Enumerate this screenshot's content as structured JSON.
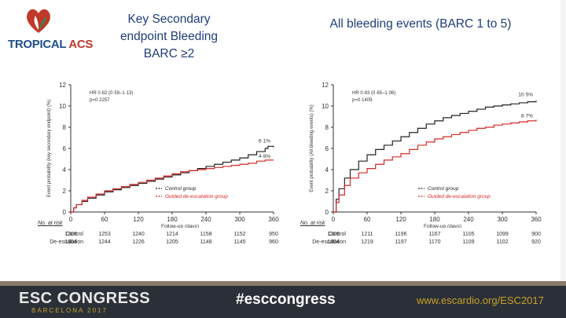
{
  "logo": {
    "name_part1": "TROPICAL",
    "name_part2": " ACS"
  },
  "slide_titles": {
    "left": [
      "Key Secondary",
      "endpoint  Bleeding",
      "BARC ≥2"
    ],
    "right": "All bleeding events (BARC 1 to 5)"
  },
  "chart_data": [
    {
      "type": "line",
      "title": "",
      "xlabel": "Follow-up (days)",
      "ylabel": "Event probability (key secondary endpoint) (%)",
      "xlim": [
        0,
        360
      ],
      "ylim": [
        0,
        12
      ],
      "x_ticks": [
        0,
        60,
        120,
        180,
        240,
        300,
        360
      ],
      "y_ticks": [
        0,
        2,
        4,
        6,
        8,
        10,
        12
      ],
      "annotation": [
        "HR 0·82 (0·59–1·13)",
        "p=0·2257"
      ],
      "legend": [
        "Control group",
        "Guided de-escalation group"
      ],
      "legend_placement": "bottom-right",
      "series": [
        {
          "name": "Control group",
          "color": "#222222",
          "end_label": "6·1%",
          "x": [
            0,
            5,
            10,
            20,
            30,
            45,
            60,
            75,
            90,
            105,
            120,
            135,
            150,
            165,
            180,
            195,
            210,
            225,
            240,
            255,
            270,
            285,
            300,
            315,
            330,
            345,
            350,
            360
          ],
          "y": [
            0,
            0.4,
            0.7,
            1.0,
            1.3,
            1.6,
            1.9,
            2.1,
            2.3,
            2.5,
            2.7,
            2.9,
            3.1,
            3.3,
            3.5,
            3.7,
            3.9,
            4.1,
            4.3,
            4.5,
            4.7,
            4.9,
            5.1,
            5.4,
            5.7,
            6.0,
            6.2,
            6.1
          ]
        },
        {
          "name": "Guided de-escalation group",
          "color": "#d62828",
          "end_label": "4·9%",
          "x": [
            0,
            5,
            10,
            20,
            30,
            45,
            60,
            75,
            90,
            105,
            120,
            135,
            150,
            165,
            180,
            195,
            210,
            225,
            240,
            255,
            270,
            285,
            300,
            315,
            330,
            345,
            360
          ],
          "y": [
            0,
            0.4,
            0.7,
            1.1,
            1.4,
            1.7,
            2.0,
            2.2,
            2.4,
            2.6,
            2.8,
            3.0,
            3.2,
            3.4,
            3.6,
            3.8,
            3.9,
            4.0,
            4.1,
            4.2,
            4.3,
            4.4,
            4.5,
            4.6,
            4.8,
            4.9,
            4.9
          ]
        }
      ],
      "at_risk": {
        "header": "No. at risk",
        "rows": [
          {
            "label": "Control",
            "values": [
              "1306",
              "1253",
              "1240",
              "1214",
              "1158",
              "1152",
              "950"
            ]
          },
          {
            "label": "De-escalation",
            "values": [
              "1304",
              "1244",
              "1226",
              "1205",
              "1148",
              "1145",
              "960"
            ]
          }
        ]
      }
    },
    {
      "type": "line",
      "title": "",
      "xlabel": "Follow-up (days)",
      "ylabel": "Event probability (All bleeding events) (%)",
      "xlim": [
        0,
        360
      ],
      "ylim": [
        0,
        12
      ],
      "x_ticks": [
        0,
        60,
        120,
        180,
        240,
        300,
        360
      ],
      "y_ticks": [
        0,
        2,
        4,
        6,
        8,
        10,
        12
      ],
      "annotation": [
        "HR 0·83 (0·65–1·06)",
        "p=0·1409"
      ],
      "legend": [
        "Control group",
        "Guided de-escalation group"
      ],
      "legend_placement": "bottom-right",
      "series": [
        {
          "name": "Control group",
          "color": "#222222",
          "end_label": "10·5%",
          "x": [
            0,
            5,
            10,
            20,
            30,
            45,
            60,
            75,
            90,
            105,
            120,
            135,
            150,
            165,
            180,
            195,
            210,
            225,
            240,
            255,
            270,
            285,
            300,
            315,
            330,
            345,
            360
          ],
          "y": [
            0,
            1.2,
            2.2,
            3.2,
            4.0,
            4.8,
            5.4,
            5.9,
            6.3,
            6.7,
            7.1,
            7.5,
            7.9,
            8.3,
            8.6,
            8.9,
            9.1,
            9.3,
            9.5,
            9.7,
            9.9,
            10.0,
            10.1,
            10.2,
            10.3,
            10.4,
            10.5
          ]
        },
        {
          "name": "Guided de-escalation group",
          "color": "#d62828",
          "end_label": "8·7%",
          "x": [
            0,
            5,
            10,
            20,
            30,
            45,
            60,
            75,
            90,
            105,
            120,
            135,
            150,
            165,
            180,
            195,
            210,
            225,
            240,
            255,
            270,
            285,
            300,
            315,
            330,
            345,
            360
          ],
          "y": [
            0,
            0.9,
            1.6,
            2.5,
            3.2,
            3.7,
            4.1,
            4.5,
            4.9,
            5.2,
            5.5,
            5.9,
            6.3,
            6.6,
            6.9,
            7.1,
            7.3,
            7.5,
            7.7,
            7.9,
            8.0,
            8.2,
            8.3,
            8.4,
            8.5,
            8.6,
            8.7
          ]
        }
      ],
      "at_risk": {
        "header": "No. at risk",
        "rows": [
          {
            "label": "Control",
            "values": [
              "1306",
              "1211",
              "1196",
              "1167",
              "1105",
              "1099",
              "900"
            ]
          },
          {
            "label": "De-escalation",
            "values": [
              "1304",
              "1219",
              "1197",
              "1170",
              "1109",
              "1102",
              "920"
            ]
          }
        ]
      }
    }
  ],
  "footer": {
    "brand": "ESC CONGRESS",
    "location": "BARCELONA 2017",
    "hashtag": "#esccongress",
    "url": "www.escardio.org/ESC2017"
  }
}
